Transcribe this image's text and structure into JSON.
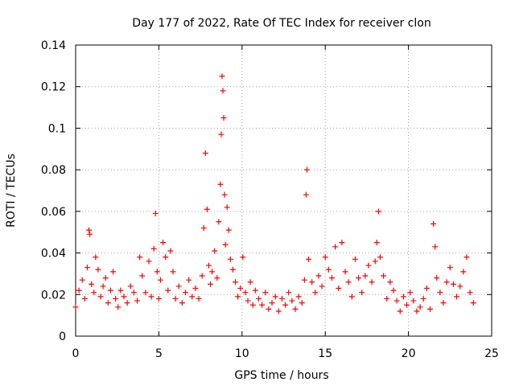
{
  "chart_data": {
    "type": "scatter",
    "title": "Day 177 of 2022, Rate Of TEC Index for receiver clon",
    "xlabel": "GPS time / hours",
    "ylabel": "ROTI / TECUs",
    "xlim": [
      0,
      25
    ],
    "ylim": [
      0,
      0.14
    ],
    "xticks": [
      0,
      5,
      10,
      15,
      20,
      25
    ],
    "xtick_labels": [
      "0",
      "5",
      "10",
      "15",
      "20",
      "25"
    ],
    "yticks": [
      0,
      0.02,
      0.04,
      0.06,
      0.08,
      0.1,
      0.12,
      0.14
    ],
    "ytick_labels": [
      "0",
      "0.02",
      "0.04",
      "0.06",
      "0.08",
      "0.1",
      "0.12",
      "0.14"
    ],
    "grid": true,
    "marker": "+",
    "series_color": "#ff0000",
    "series": [
      {
        "name": "ROTI",
        "x": [
          0.0,
          0.2,
          0.4,
          0.55,
          0.7,
          0.8,
          0.85,
          0.95,
          1.1,
          1.2,
          1.35,
          1.5,
          1.65,
          1.8,
          1.95,
          2.1,
          2.25,
          2.4,
          2.55,
          2.7,
          2.9,
          3.1,
          3.3,
          3.5,
          3.7,
          3.85,
          4.0,
          4.2,
          4.4,
          4.55,
          4.7,
          4.8,
          4.9,
          5.0,
          5.1,
          5.25,
          5.4,
          5.55,
          5.7,
          5.85,
          6.0,
          6.2,
          6.4,
          6.6,
          6.8,
          7.0,
          7.2,
          7.4,
          7.6,
          7.7,
          7.8,
          7.9,
          8.0,
          8.1,
          8.2,
          8.35,
          8.5,
          8.6,
          8.7,
          8.75,
          8.8,
          8.85,
          8.9,
          8.95,
          9.0,
          9.1,
          9.2,
          9.3,
          9.45,
          9.6,
          9.75,
          9.9,
          10.05,
          10.2,
          10.35,
          10.5,
          10.65,
          10.8,
          11.0,
          11.2,
          11.4,
          11.6,
          11.8,
          12.0,
          12.2,
          12.4,
          12.6,
          12.8,
          13.0,
          13.2,
          13.4,
          13.6,
          13.75,
          13.85,
          13.9,
          14.0,
          14.2,
          14.4,
          14.6,
          14.8,
          15.0,
          15.2,
          15.4,
          15.6,
          15.8,
          16.0,
          16.2,
          16.4,
          16.6,
          16.8,
          17.0,
          17.2,
          17.4,
          17.6,
          17.8,
          18.0,
          18.1,
          18.2,
          18.3,
          18.5,
          18.7,
          18.9,
          19.1,
          19.3,
          19.5,
          19.7,
          19.9,
          20.1,
          20.3,
          20.5,
          20.7,
          20.9,
          21.1,
          21.3,
          21.5,
          21.6,
          21.7,
          21.9,
          22.1,
          22.3,
          22.5,
          22.7,
          22.9,
          23.1,
          23.3,
          23.5,
          23.7,
          23.9
        ],
        "y": [
          0.014,
          0.022,
          0.027,
          0.018,
          0.033,
          0.051,
          0.049,
          0.025,
          0.021,
          0.038,
          0.032,
          0.019,
          0.024,
          0.028,
          0.016,
          0.022,
          0.031,
          0.018,
          0.014,
          0.022,
          0.019,
          0.016,
          0.024,
          0.021,
          0.017,
          0.038,
          0.029,
          0.021,
          0.036,
          0.019,
          0.042,
          0.059,
          0.031,
          0.018,
          0.027,
          0.045,
          0.038,
          0.022,
          0.041,
          0.031,
          0.018,
          0.024,
          0.016,
          0.021,
          0.027,
          0.019,
          0.023,
          0.018,
          0.029,
          0.052,
          0.088,
          0.061,
          0.034,
          0.025,
          0.031,
          0.041,
          0.028,
          0.055,
          0.073,
          0.097,
          0.125,
          0.118,
          0.105,
          0.068,
          0.044,
          0.062,
          0.051,
          0.037,
          0.032,
          0.026,
          0.019,
          0.023,
          0.038,
          0.021,
          0.017,
          0.026,
          0.015,
          0.022,
          0.018,
          0.015,
          0.021,
          0.013,
          0.016,
          0.019,
          0.012,
          0.018,
          0.015,
          0.021,
          0.017,
          0.013,
          0.019,
          0.016,
          0.027,
          0.068,
          0.08,
          0.037,
          0.026,
          0.021,
          0.029,
          0.024,
          0.038,
          0.032,
          0.028,
          0.043,
          0.023,
          0.045,
          0.031,
          0.026,
          0.019,
          0.037,
          0.028,
          0.021,
          0.029,
          0.034,
          0.026,
          0.036,
          0.045,
          0.06,
          0.038,
          0.029,
          0.018,
          0.026,
          0.022,
          0.017,
          0.012,
          0.019,
          0.015,
          0.021,
          0.017,
          0.012,
          0.014,
          0.018,
          0.023,
          0.013,
          0.054,
          0.043,
          0.028,
          0.021,
          0.016,
          0.026,
          0.033,
          0.025,
          0.019,
          0.024,
          0.031,
          0.038,
          0.021,
          0.016
        ]
      }
    ]
  }
}
